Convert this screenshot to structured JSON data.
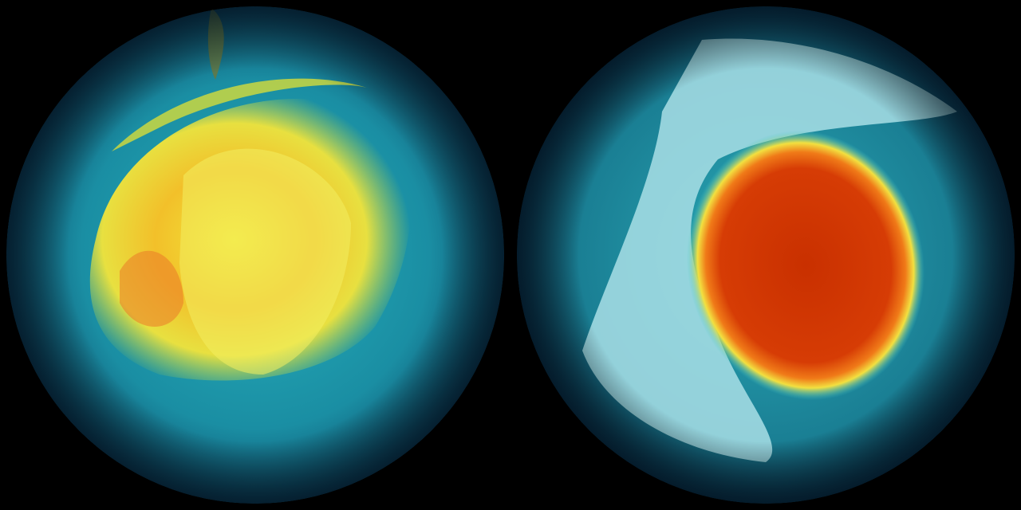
{
  "background_color": "#000000",
  "globes": [
    {
      "view": "south-polar",
      "colors": {
        "ocean": "#1a7f94",
        "low": "#2ab3bd",
        "mid": "#e8e030",
        "high": "#f0a020",
        "peak": "#e87020"
      }
    },
    {
      "view": "north-polar",
      "colors": {
        "ocean": "#1b7d92",
        "land": "#a7dfe6",
        "ring": "#f0e040",
        "high": "#e85a10",
        "peak": "#cc3300"
      }
    }
  ]
}
